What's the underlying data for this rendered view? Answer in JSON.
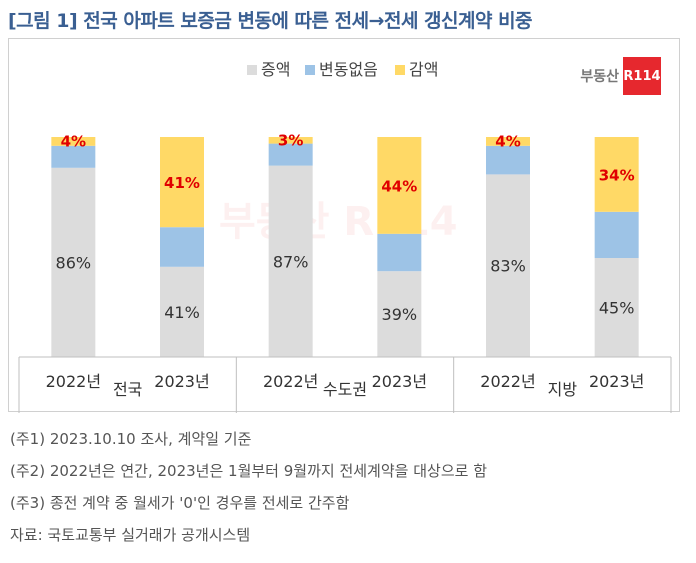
{
  "title": "[그림 1] 전국 아파트 보증금 변동에 따른 전세→전세 갱신계약 비중",
  "logo": {
    "text": "부동산",
    "badge": "R114"
  },
  "watermark": "부동산 R114",
  "chart_data": {
    "type": "bar",
    "stacked": true,
    "percent": true,
    "groups": [
      "전국",
      "수도권",
      "지방"
    ],
    "categories": [
      "2022년",
      "2023년",
      "2022년",
      "2023년",
      "2022년",
      "2023년"
    ],
    "legend_position": "top-center",
    "series": [
      {
        "name": "증액",
        "color": "#dcdcdc",
        "values": [
          86,
          41,
          87,
          39,
          83,
          45
        ],
        "labels": [
          "86%",
          "41%",
          "87%",
          "39%",
          "83%",
          "45%"
        ]
      },
      {
        "name": "변동없음",
        "color": "#9dc3e6",
        "values": [
          10,
          18,
          10,
          17,
          13,
          21
        ],
        "labels": [
          "",
          "",
          "",
          "",
          "",
          ""
        ]
      },
      {
        "name": "감액",
        "color": "#ffd966",
        "values": [
          4,
          41,
          3,
          44,
          4,
          34
        ],
        "labels": [
          "4%",
          "41%",
          "3%",
          "44%",
          "4%",
          "34%"
        ]
      }
    ],
    "ylim": [
      0,
      100
    ],
    "grid": false
  },
  "notes": [
    "(주1) 2023.10.10 조사, 계약일 기준",
    "(주2) 2022년은 연간, 2023년은 1월부터 9월까지 전세계약을 대상으로 함",
    "(주3) 종전 계약 중 월세가 '0'인 경우를 전세로 간주함",
    "자료: 국토교통부 실거래가 공개시스템"
  ]
}
